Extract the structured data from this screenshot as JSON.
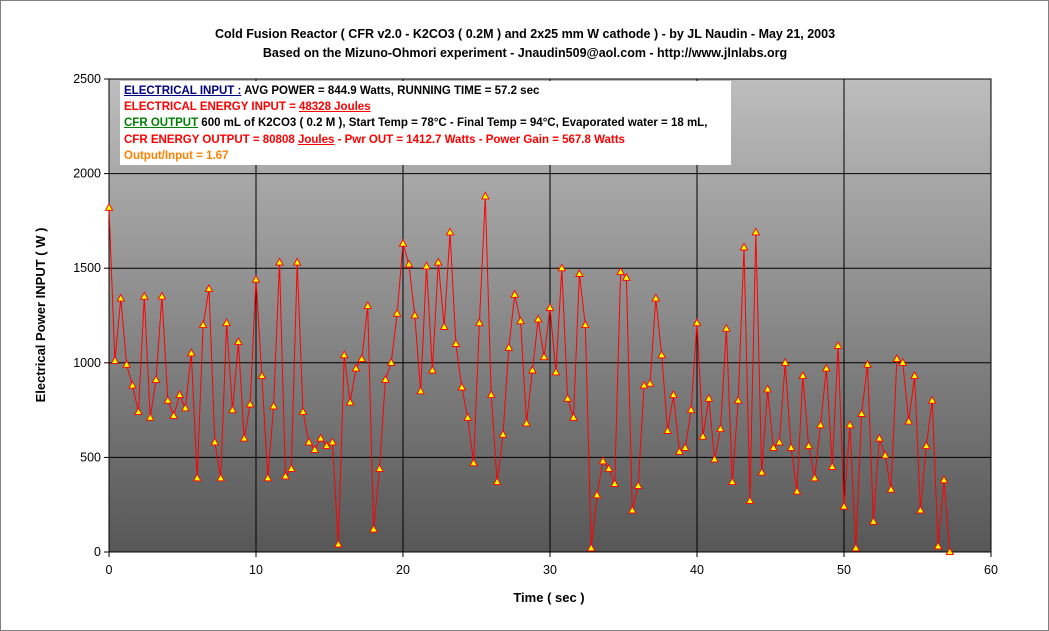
{
  "colors": {
    "line": "#ff0000",
    "marker_fill": "#ffff00",
    "marker_stroke": "#ff0000",
    "gradient_top": "#bdbdbd",
    "gradient_bottom": "#575757",
    "grid": "#000000",
    "ann_navy": "#000080",
    "ann_red": "#ff0000",
    "ann_green": "#008000",
    "ann_orange": "#ff8000",
    "ann_black": "#000000"
  },
  "annotation": {
    "line1_label": "ELECTRICAL INPUT :",
    "line1_text": " AVG POWER = 844.9 Watts, RUNNING TIME = 57.2 sec",
    "line2_label": "ELECTRICAL  ENERGY INPUT = ",
    "line2_value": "48328 Joules",
    "line3_label": "CFR OUTPUT",
    "line3_text": " 600 mL of K2CO3 ( 0.2 M ), Start Temp = 78°C - Final Temp = 94°C, Evaporated water = 18 mL,",
    "line4_a": "CFR ENERGY OUTPUT = 80808 ",
    "line4_b": "Joules",
    "line4_c": " - Pwr OUT = 1412.7 Watts - Power Gain = 567.8 Watts",
    "line5_text": "Output/Input = 1.67"
  },
  "chart_data": {
    "type": "line",
    "title": "Cold Fusion Reactor ( CFR v2.0 - K2CO3 ( 0.2M ) and 2x25 mm W cathode ) - by JL Naudin - May 21, 2003",
    "subtitle": "Based on the Mizuno-Ohmori experiment - Jnaudin509@aol.com - http://www.jlnlabs.org",
    "xlabel": "Time ( sec )",
    "ylabel": "Electrical Power INPUT ( W )",
    "xlim": [
      0,
      60
    ],
    "ylim": [
      0,
      2500
    ],
    "x_ticks": [
      0,
      10,
      20,
      30,
      40,
      50,
      60
    ],
    "y_ticks": [
      0,
      500,
      1000,
      1500,
      2000,
      2500
    ],
    "x_tick_labels": [
      "0",
      "10",
      "20",
      "30",
      "40",
      "50",
      "60"
    ],
    "y_tick_labels": [
      "0",
      "500",
      "1000",
      "1500",
      "2000",
      "2500"
    ],
    "grid": true,
    "legend": false,
    "series": [
      {
        "x": [
          0.0,
          0.4,
          0.8,
          1.2,
          1.6,
          2.0,
          2.4,
          2.8,
          3.2,
          3.6,
          4.0,
          4.4,
          4.8,
          5.2,
          5.6,
          6.0,
          6.4,
          6.8,
          7.2,
          7.6,
          8.0,
          8.4,
          8.8,
          9.2,
          9.6,
          10.0,
          10.4,
          10.8,
          11.2,
          11.6,
          12.0,
          12.4,
          12.8,
          13.2,
          13.6,
          14.0,
          14.4,
          14.8,
          15.2,
          15.6,
          16.0,
          16.4,
          16.8,
          17.2,
          17.6,
          18.0,
          18.4,
          18.8,
          19.2,
          19.6,
          20.0,
          20.4,
          20.8,
          21.2,
          21.6,
          22.0,
          22.4,
          22.8,
          23.2,
          23.6,
          24.0,
          24.4,
          24.8,
          25.2,
          25.6,
          26.0,
          26.4,
          26.8,
          27.2,
          27.6,
          28.0,
          28.4,
          28.8,
          29.2,
          29.6,
          30.0,
          30.4,
          30.8,
          31.2,
          31.6,
          32.0,
          32.4,
          32.8,
          33.2,
          33.6,
          34.0,
          34.4,
          34.8,
          35.2,
          35.6,
          36.0,
          36.4,
          36.8,
          37.2,
          37.6,
          38.0,
          38.4,
          38.8,
          39.2,
          39.6,
          40.0,
          40.4,
          40.8,
          41.2,
          41.6,
          42.0,
          42.4,
          42.8,
          43.2,
          43.6,
          44.0,
          44.4,
          44.8,
          45.2,
          45.6,
          46.0,
          46.4,
          46.8,
          47.2,
          47.6,
          48.0,
          48.4,
          48.8,
          49.2,
          49.6,
          50.0,
          50.4,
          50.8,
          51.2,
          51.6,
          52.0,
          52.4,
          52.8,
          53.2,
          53.6,
          54.0,
          54.4,
          54.8,
          55.2,
          55.6,
          56.0,
          56.4,
          56.8,
          57.2
        ],
        "y": [
          1820,
          1010,
          1340,
          990,
          880,
          740,
          1350,
          710,
          910,
          1350,
          800,
          720,
          830,
          760,
          1050,
          390,
          1200,
          1390,
          580,
          390,
          1210,
          750,
          1110,
          600,
          780,
          1440,
          930,
          390,
          770,
          1530,
          400,
          440,
          1530,
          740,
          580,
          540,
          600,
          560,
          580,
          40,
          1040,
          790,
          970,
          1020,
          1300,
          120,
          440,
          910,
          1000,
          1260,
          1630,
          1520,
          1250,
          850,
          1510,
          960,
          1530,
          1190,
          1690,
          1100,
          870,
          710,
          470,
          1210,
          1880,
          830,
          370,
          620,
          1080,
          1360,
          1220,
          680,
          960,
          1230,
          1030,
          1290,
          950,
          1500,
          810,
          710,
          1470,
          1200,
          20,
          300,
          480,
          440,
          360,
          1480,
          1450,
          220,
          350,
          880,
          890,
          1340,
          1040,
          640,
          830,
          530,
          550,
          750,
          1210,
          610,
          810,
          490,
          650,
          1180,
          370,
          800,
          1610,
          270,
          1690,
          420,
          860,
          550,
          580,
          1000,
          550,
          320,
          930,
          560,
          390,
          670,
          970,
          450,
          1090,
          240,
          670,
          20,
          730,
          990,
          160,
          600,
          510,
          330,
          1020,
          1000,
          690,
          930,
          220,
          560,
          800,
          30,
          380,
          0
        ]
      }
    ]
  }
}
